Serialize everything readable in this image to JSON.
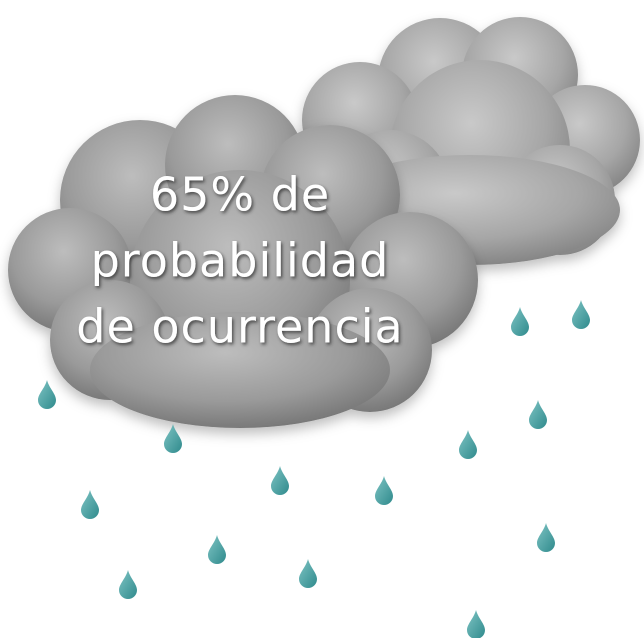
{
  "text": {
    "lines": [
      "65% de",
      "probabilidad",
      "de ocurrencia"
    ]
  }
}
